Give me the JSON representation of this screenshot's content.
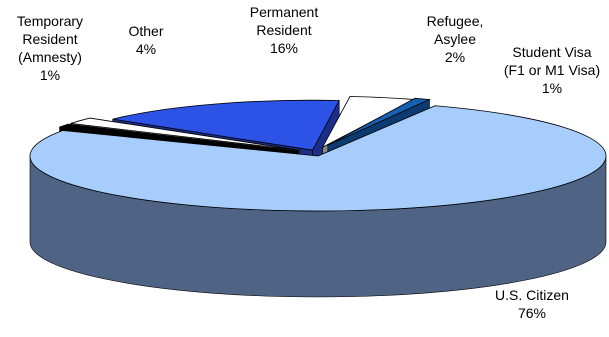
{
  "chart_data": {
    "type": "pie",
    "title": "",
    "style": "3d-exploded",
    "unit": "%",
    "slices": [
      {
        "name": "U.S. Citizen",
        "value": 76,
        "label": "76%",
        "color": "#a6cdfb",
        "side_color": "#4f6484"
      },
      {
        "name": "Student Visa (F1 or M1 Visa)",
        "value": 1,
        "label": "1%",
        "color": "#000000",
        "side_color": "#000000"
      },
      {
        "name": "Refugee, Asylee",
        "value": 2,
        "label": "2%",
        "color": "#ffffff",
        "side_color": "#9a9a9a"
      },
      {
        "name": "Permanent Resident",
        "value": 16,
        "label": "16%",
        "color": "#2c52e6",
        "side_color": "#1c2e8c"
      },
      {
        "name": "Other",
        "value": 4,
        "label": "4%",
        "color": "#ffffff",
        "side_color": "#8a8a8a"
      },
      {
        "name": "Temporary Resident (Amnesty)",
        "value": 1,
        "label": "1%",
        "color": "#1560b0",
        "side_color": "#0c3b72"
      }
    ]
  },
  "labels": {
    "us_citizen": {
      "lines": [
        "U.S. Citizen",
        "76%"
      ]
    },
    "student_visa": {
      "lines": [
        "Student Visa",
        "(F1 or M1 Visa)",
        "1%"
      ]
    },
    "refugee": {
      "lines": [
        "Refugee,",
        "Asylee",
        "2%"
      ]
    },
    "permanent": {
      "lines": [
        "Permanent",
        "Resident",
        "16%"
      ]
    },
    "other": {
      "lines": [
        "Other",
        "4%"
      ]
    },
    "temporary": {
      "lines": [
        "Temporary",
        "Resident",
        "(Amnesty)",
        "1%"
      ]
    }
  }
}
